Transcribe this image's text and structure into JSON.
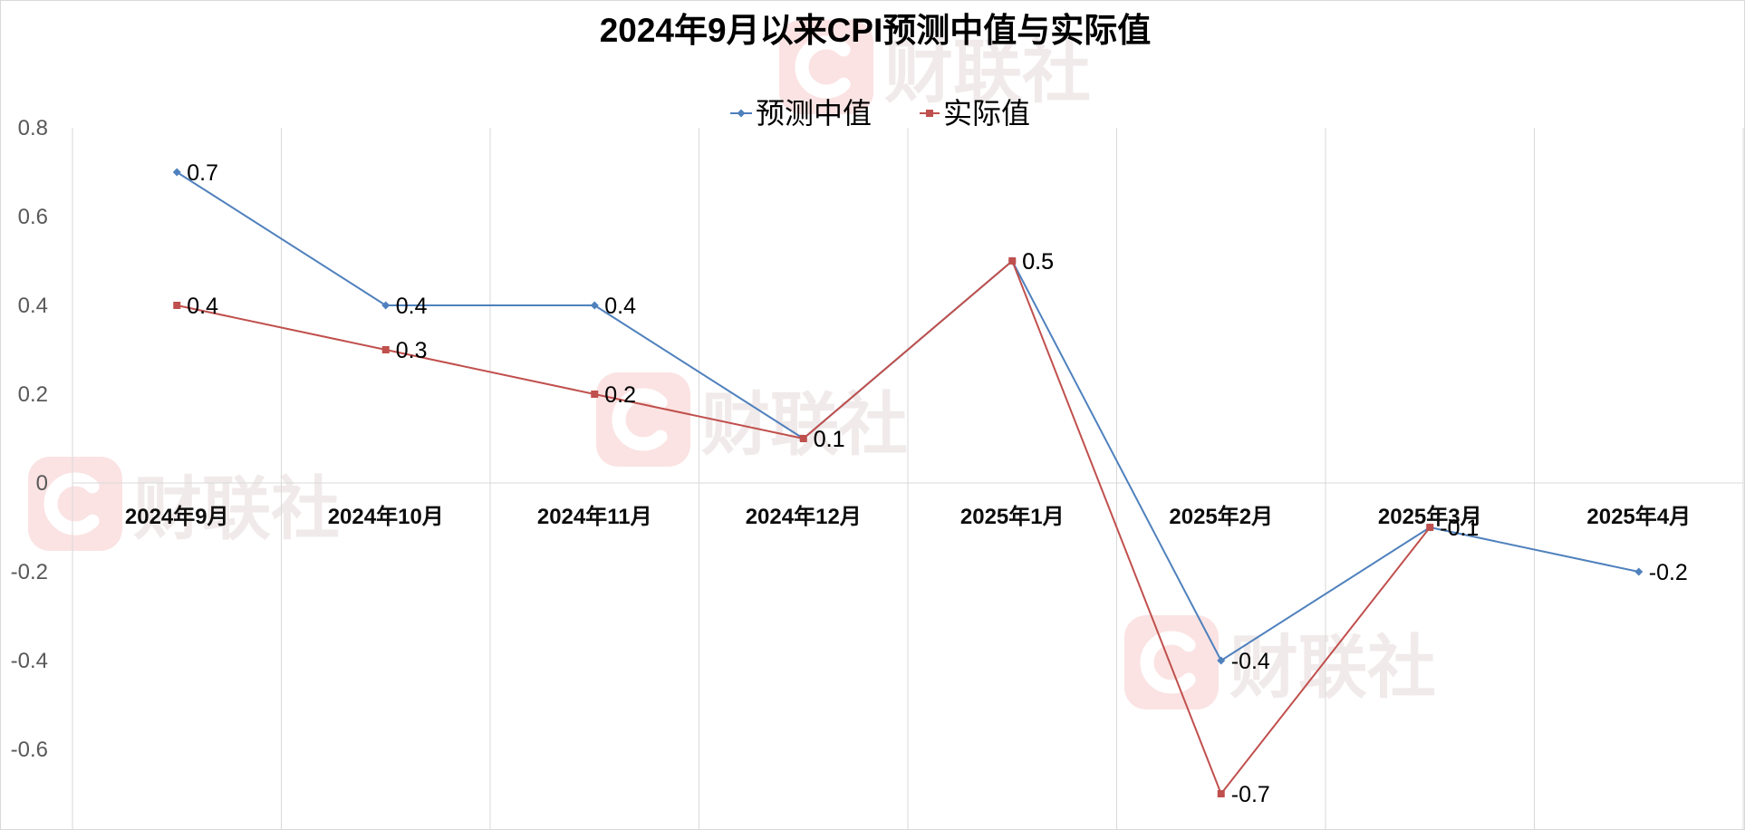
{
  "chart_data": {
    "type": "line",
    "title": "2024年9月以来CPI预测中值与实际值",
    "categories": [
      "2024年9月",
      "2024年10月",
      "2024年11月",
      "2024年12月",
      "2025年1月",
      "2025年2月",
      "2025年3月",
      "2025年4月"
    ],
    "series": [
      {
        "name": "预测中值",
        "values": [
          0.7,
          0.4,
          0.4,
          0.1,
          0.5,
          -0.4,
          -0.1,
          -0.2
        ],
        "color": "#4F81BD",
        "marker": "diamond"
      },
      {
        "name": "实际值",
        "values": [
          0.4,
          0.3,
          0.2,
          0.1,
          0.5,
          -0.7,
          -0.1,
          null
        ],
        "color": "#C0504D",
        "marker": "square"
      }
    ],
    "y_tick_labels": [
      "0.8",
      "0.6",
      "0.4",
      "0.2",
      "0",
      "-0.2",
      "-0.4",
      "-0.6"
    ],
    "ylim": [
      -0.8,
      0.8
    ],
    "grid": {
      "vertical": true,
      "horizontal": false
    },
    "legend": {
      "position": "top-center"
    },
    "data_labels": "right"
  },
  "watermark": {
    "text": "财联社",
    "badge_color": "#fbe3e3",
    "text_color": "#f1eaea"
  }
}
